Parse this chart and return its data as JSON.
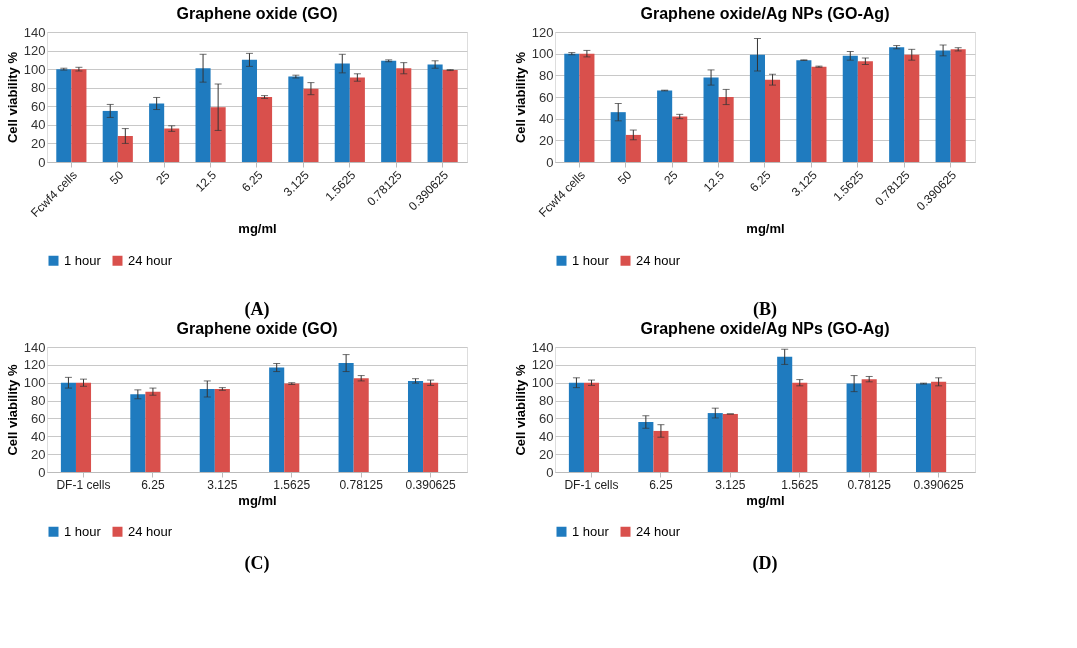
{
  "chart_data": [
    {
      "type": "bar",
      "title": "Graphene oxide (GO)",
      "xlabel": "mg/ml",
      "ylabel": "Cell viability %",
      "categories": [
        "Fcwf4 cells",
        "50",
        "25",
        "12.5",
        "6.25",
        "3.125",
        "1.5625",
        "0.78125",
        "0.390625"
      ],
      "ylim": [
        0,
        140
      ],
      "yticks": [
        0,
        20,
        40,
        60,
        80,
        100,
        120,
        140
      ],
      "grid": "y",
      "legend": "bottom",
      "annotations": [
        "(A)"
      ],
      "series": [
        {
          "name": "1 hour",
          "color": "#1f7bbf",
          "values": [
            100,
            55,
            63,
            101,
            110,
            92,
            106,
            109,
            105
          ],
          "errors": [
            1,
            7,
            6.5,
            15,
            7,
            1.5,
            10,
            1,
            4
          ]
        },
        {
          "name": "24 hour",
          "color": "#d9504c",
          "values": [
            100,
            28,
            36,
            59,
            70,
            79,
            91,
            101,
            99
          ],
          "errors": [
            2,
            8,
            3,
            25,
            1.5,
            6.5,
            4,
            6,
            0.5
          ]
        }
      ]
    },
    {
      "type": "bar",
      "title": "Graphene oxide/Ag NPs (GO-Ag)",
      "xlabel": "mg/ml",
      "ylabel": "Cell viability %",
      "categories": [
        "Fcwf4 cells",
        "50",
        "25",
        "12.5",
        "6.25",
        "3.125",
        "1.5625",
        "0.78125",
        "0.390625"
      ],
      "ylim": [
        0,
        120
      ],
      "yticks": [
        0,
        20,
        40,
        60,
        80,
        100,
        120
      ],
      "grid": "y",
      "legend": "bottom",
      "annotations": [
        "(B)"
      ],
      "series": [
        {
          "name": "1 hour",
          "color": "#1f7bbf",
          "values": [
            100,
            46,
            66,
            78,
            99,
            94,
            98,
            106,
            103
          ],
          "errors": [
            1,
            8,
            0.3,
            7,
            15,
            0.3,
            4,
            1.5,
            5
          ]
        },
        {
          "name": "24 hour",
          "color": "#d9504c",
          "values": [
            100,
            25,
            42,
            60,
            76,
            88,
            93,
            99,
            104
          ],
          "errors": [
            3,
            4.5,
            2,
            7,
            5,
            0.5,
            3,
            5,
            1.5
          ]
        }
      ]
    },
    {
      "type": "bar",
      "title": "Graphene oxide (GO)",
      "xlabel": "mg/ml",
      "ylabel": "Cell viability %",
      "categories": [
        "DF-1 cells",
        "6.25",
        "3.125",
        "1.5625",
        "0.78125",
        "0.390625"
      ],
      "ylim": [
        0,
        140
      ],
      "yticks": [
        0,
        20,
        40,
        60,
        80,
        100,
        120,
        140
      ],
      "grid": "y",
      "legend": "bottom",
      "annotations": [
        "(C)"
      ],
      "series": [
        {
          "name": "1 hour",
          "color": "#1f7bbf",
          "values": [
            100,
            87,
            93,
            117,
            122,
            102
          ],
          "errors": [
            6,
            5,
            9,
            4.5,
            9.5,
            2.5
          ]
        },
        {
          "name": "24 hour",
          "color": "#d9504c",
          "values": [
            100,
            90,
            93,
            99,
            105,
            100
          ],
          "errors": [
            4,
            4,
            1.5,
            1,
            3,
            3
          ]
        }
      ]
    },
    {
      "type": "bar",
      "title": "Graphene oxide/Ag NPs (GO-Ag)",
      "xlabel": "mg/ml",
      "ylabel": "Cell viability %",
      "categories": [
        "DF-1 cells",
        "6.25",
        "3.125",
        "1.5625",
        "0.78125",
        "0.390625"
      ],
      "ylim": [
        0,
        140
      ],
      "yticks": [
        0,
        20,
        40,
        60,
        80,
        100,
        120,
        140
      ],
      "grid": "y",
      "legend": "bottom",
      "annotations": [
        "(D)"
      ],
      "series": [
        {
          "name": "1 hour",
          "color": "#1f7bbf",
          "values": [
            100,
            56,
            66,
            129,
            99,
            99
          ],
          "errors": [
            5.5,
            7,
            5.5,
            8.5,
            9,
            0.5
          ]
        },
        {
          "name": "24 hour",
          "color": "#d9504c",
          "values": [
            100,
            46,
            65,
            100,
            104,
            101
          ],
          "errors": [
            3,
            7,
            0,
            3.5,
            3,
            4.5
          ]
        }
      ]
    }
  ]
}
